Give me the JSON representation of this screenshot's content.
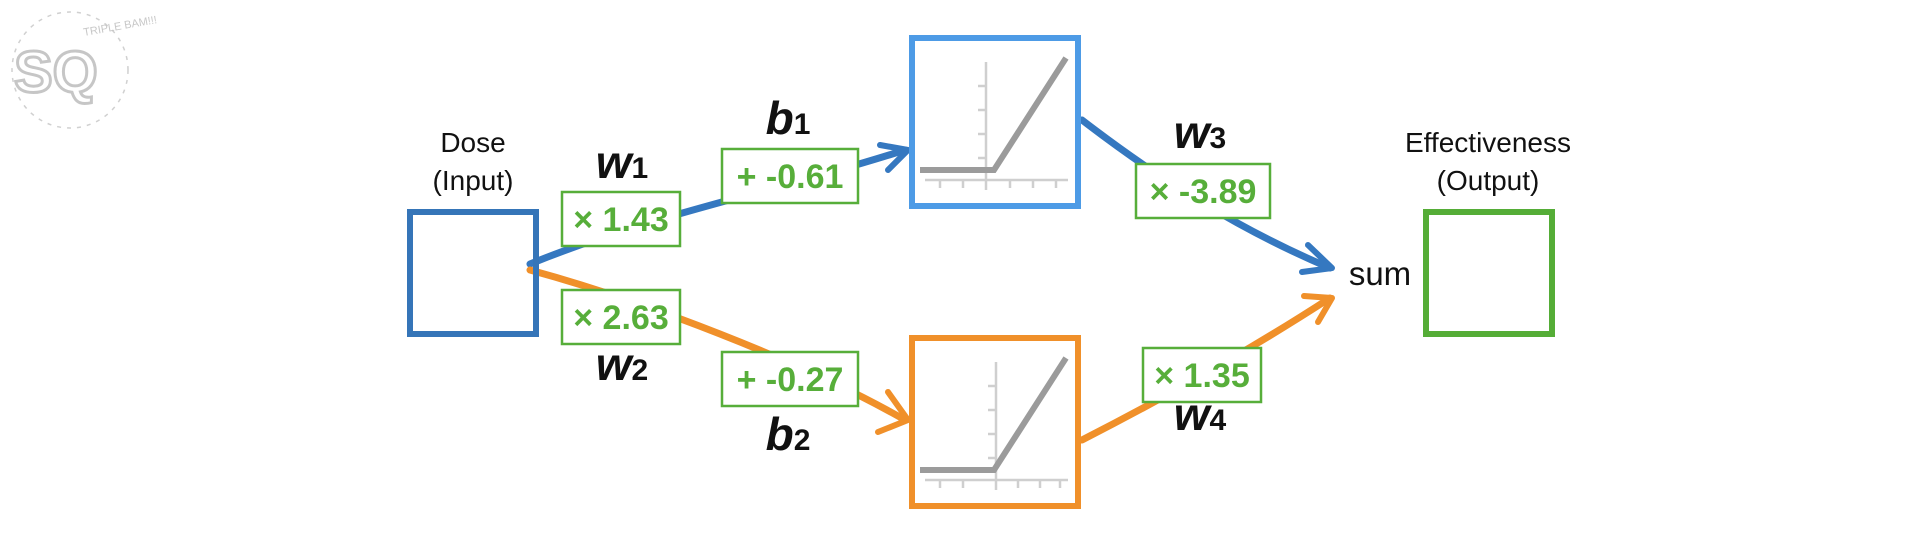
{
  "logo": {
    "text": "SQ",
    "tagline": "TRIPLE BAM!!!"
  },
  "input": {
    "line1": "Dose",
    "line2": "(Input)",
    "color": "#3575b8"
  },
  "output": {
    "line1": "Effectiveness",
    "line2": "(Output)",
    "color": "#55ad37"
  },
  "sum_label": "sum",
  "colors": {
    "top": "#3578c0",
    "bottom": "#f0902a",
    "value": "#57ae3a",
    "relu": "#9b9b9b",
    "hidden_top": "#4d9be6"
  },
  "weights": {
    "w1": {
      "letter": "w",
      "sub": "1",
      "value": "× 1.43"
    },
    "w2": {
      "letter": "w",
      "sub": "2",
      "value": "× 2.63"
    },
    "w3": {
      "letter": "w",
      "sub": "3",
      "value": "× -3.89"
    },
    "w4": {
      "letter": "w",
      "sub": "4",
      "value": "× 1.35"
    }
  },
  "biases": {
    "b1": {
      "letter": "b",
      "sub": "1",
      "value": "+ -0.61"
    },
    "b2": {
      "letter": "b",
      "sub": "2",
      "value": "+ -0.27"
    }
  },
  "activation": "relu"
}
